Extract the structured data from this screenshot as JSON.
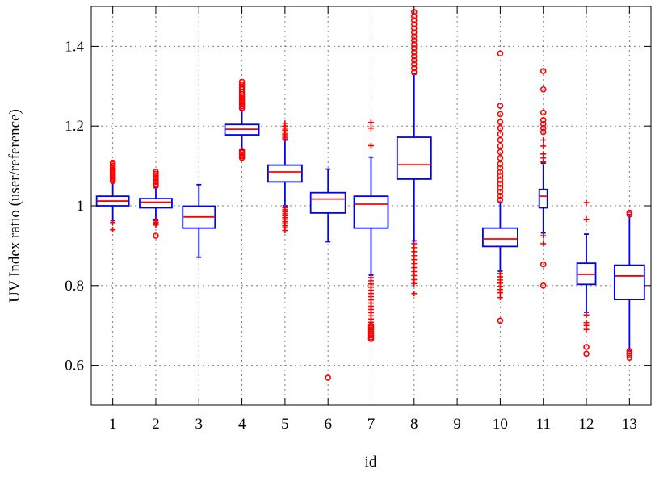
{
  "chart_data": {
    "type": "box",
    "title": "",
    "xlabel": "id",
    "ylabel": "UV Index ratio (user/reference)",
    "xlim": [
      0.5,
      13.5
    ],
    "ylim": [
      0.5,
      1.5
    ],
    "grid": true,
    "categories": [
      "1",
      "2",
      "3",
      "4",
      "5",
      "6",
      "7",
      "8",
      "9",
      "10",
      "11",
      "12",
      "13"
    ],
    "yticks": [
      0.6,
      0.8,
      1,
      1.2,
      1.4
    ],
    "ytick_labels": [
      "0.6",
      "0.8",
      "1",
      "1.2",
      "1.4"
    ],
    "colors": {
      "box": "#0000ff",
      "median": "#ff0000",
      "outlier": "#ff0000",
      "grid": "#808080"
    },
    "boxes": [
      {
        "id": 1,
        "whisker_low": 0.963,
        "q1": 1.0,
        "median": 1.012,
        "q3": 1.024,
        "whisker_high": 1.06,
        "outliers_circle": [
          1.062,
          1.066,
          1.07,
          1.074,
          1.078,
          1.082,
          1.086,
          1.09,
          1.095,
          1.1,
          1.105,
          1.108
        ],
        "outliers_plus": [
          0.958,
          0.94
        ]
      },
      {
        "id": 2,
        "whisker_low": 0.966,
        "q1": 0.995,
        "median": 1.009,
        "q3": 1.018,
        "whisker_high": 1.046,
        "outliers_circle": [
          1.05,
          1.055,
          1.06,
          1.065,
          1.07,
          1.075,
          1.08,
          1.085,
          0.925
        ],
        "outliers_plus": [
          0.962,
          0.958,
          0.955,
          0.952
        ]
      },
      {
        "id": 3,
        "whisker_low": 0.871,
        "q1": 0.944,
        "median": 0.972,
        "q3": 0.999,
        "whisker_high": 1.053,
        "outliers_circle": [],
        "outliers_plus": []
      },
      {
        "id": 4,
        "whisker_low": 1.141,
        "q1": 1.178,
        "median": 1.192,
        "q3": 1.204,
        "whisker_high": 1.239,
        "outliers_circle": [
          1.245,
          1.25,
          1.255,
          1.26,
          1.265,
          1.27,
          1.275,
          1.28,
          1.286,
          1.292,
          1.298,
          1.304,
          1.311,
          1.138,
          1.133,
          1.128,
          1.124,
          1.12
        ],
        "outliers_plus": []
      },
      {
        "id": 5,
        "whisker_low": 1.0,
        "q1": 1.06,
        "median": 1.085,
        "q3": 1.102,
        "whisker_high": 1.165,
        "outliers_circle": [],
        "outliers_plus": [
          1.168,
          1.172,
          1.176,
          1.18,
          1.185,
          1.19,
          1.195,
          1.2,
          1.207,
          0.995,
          0.99,
          0.985,
          0.98,
          0.975,
          0.97,
          0.965,
          0.96,
          0.955,
          0.95,
          0.945,
          0.938
        ]
      },
      {
        "id": 6,
        "whisker_low": 0.91,
        "q1": 0.982,
        "median": 1.017,
        "q3": 1.033,
        "whisker_high": 1.092,
        "outliers_circle": [
          0.569
        ],
        "outliers_plus": []
      },
      {
        "id": 7,
        "whisker_low": 0.826,
        "q1": 0.944,
        "median": 1.004,
        "q3": 1.024,
        "whisker_high": 1.122,
        "outliers_circle": [
          0.7,
          0.695,
          0.69,
          0.685,
          0.68,
          0.675,
          0.67,
          0.666
        ],
        "outliers_plus": [
          1.151,
          1.195,
          1.209,
          0.82,
          0.812,
          0.804,
          0.796,
          0.788,
          0.78,
          0.772,
          0.764,
          0.756,
          0.748,
          0.74,
          0.732,
          0.724,
          0.716,
          0.708,
          0.7
        ]
      },
      {
        "id": 8,
        "whisker_low": 0.912,
        "q1": 1.067,
        "median": 1.103,
        "q3": 1.172,
        "whisker_high": 1.33,
        "outliers_circle": [
          1.335,
          1.345,
          1.355,
          1.365,
          1.375,
          1.385,
          1.395,
          1.405,
          1.415,
          1.425,
          1.435,
          1.445,
          1.455,
          1.465,
          1.475,
          1.486
        ],
        "outliers_plus": [
          0.905,
          0.895,
          0.885,
          0.875,
          0.865,
          0.855,
          0.845,
          0.835,
          0.825,
          0.815,
          0.805,
          0.78
        ]
      },
      {
        "id": 9
      },
      {
        "id": 10,
        "whisker_low": 0.836,
        "q1": 0.898,
        "median": 0.917,
        "q3": 0.944,
        "whisker_high": 1.009,
        "outliers_circle": [
          1.015,
          1.025,
          1.035,
          1.045,
          1.055,
          1.065,
          1.075,
          1.085,
          1.095,
          1.105,
          1.12,
          1.135,
          1.15,
          1.165,
          1.18,
          1.195,
          1.21,
          1.23,
          1.251,
          1.382,
          0.712
        ],
        "outliers_plus": [
          0.83,
          0.822,
          0.814,
          0.806,
          0.798,
          0.79,
          0.782,
          0.77
        ]
      },
      {
        "id": 11,
        "whisker_low": 0.932,
        "q1": 0.995,
        "median": 1.024,
        "q3": 1.041,
        "whisker_high": 1.107,
        "outliers_circle": [
          1.185,
          1.195,
          1.205,
          1.215,
          1.234,
          1.292,
          1.338,
          0.853,
          0.8
        ],
        "outliers_plus": [
          1.11,
          1.12,
          1.13,
          1.15,
          1.165,
          0.925,
          0.905
        ]
      },
      {
        "id": 12,
        "whisker_low": 0.733,
        "q1": 0.803,
        "median": 0.828,
        "q3": 0.856,
        "whisker_high": 0.929,
        "outliers_circle": [
          0.646,
          0.629
        ],
        "outliers_plus": [
          0.966,
          1.008,
          0.726,
          0.707,
          0.7,
          0.69
        ]
      },
      {
        "id": 13,
        "whisker_low": 0.636,
        "q1": 0.765,
        "median": 0.824,
        "q3": 0.851,
        "whisker_high": 0.978,
        "outliers_circle": [
          0.978,
          0.983,
          0.636,
          0.63,
          0.625,
          0.619
        ],
        "outliers_plus": []
      }
    ]
  }
}
